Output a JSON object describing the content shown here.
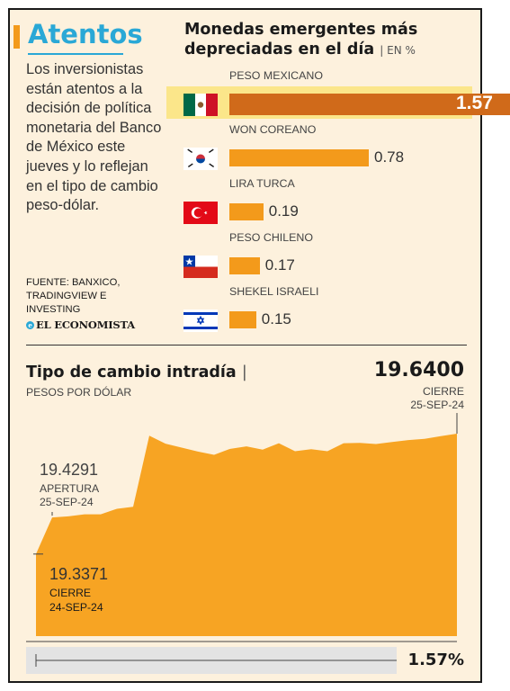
{
  "brand": "Atentos",
  "intro_text": "Los inversionistas están atentos a la decisión de política monetaria del Banco de México este jueves y lo reflejan en el tipo de cambio peso-dólar.",
  "source_text": "FUENTE: BANXICO, TRADINGVIEW E INVESTING",
  "logo_text": "EL ECONOMISTA",
  "colors": {
    "accent": "#f39a1b",
    "brand": "#2aa8d6",
    "highlight_bar": "#d06a1a",
    "background": "#fdf1dd",
    "area_fill": "#f7a423"
  },
  "chart_data": [
    {
      "type": "bar",
      "title": "Monedas emergentes más depreciadas en el día",
      "unit": "EN %",
      "categories": [
        "PESO MEXICANO",
        "WON COREANO",
        "LIRA TURCA",
        "PESO CHILENO",
        "SHEKEL ISRAELI"
      ],
      "values": [
        1.57,
        0.78,
        0.19,
        0.17,
        0.15
      ],
      "labels": [
        "1.57",
        "0.78",
        "0.19",
        "0.17",
        "0.15"
      ],
      "flags": [
        "mexico-flag-icon",
        "south-korea-flag-icon",
        "turkey-flag-icon",
        "chile-flag-icon",
        "israel-flag-icon"
      ],
      "highlight_index": 0
    },
    {
      "type": "area",
      "title": "Tipo de cambio intradía",
      "ylabel": "PESOS POR DÓLAR",
      "ylim": [
        19.28,
        19.665
      ],
      "x": [
        0,
        1,
        2,
        3,
        4,
        5,
        6,
        7,
        8,
        9,
        10,
        11,
        12,
        13,
        14,
        15,
        16,
        17,
        18,
        19,
        20,
        21,
        22,
        23,
        24,
        25,
        26
      ],
      "y": [
        19.3371,
        19.4291,
        19.432,
        19.437,
        19.437,
        19.451,
        19.456,
        19.635,
        19.615,
        19.605,
        19.595,
        19.587,
        19.602,
        19.608,
        19.6,
        19.616,
        19.596,
        19.601,
        19.596,
        19.616,
        19.617,
        19.614,
        19.619,
        19.624,
        19.627,
        19.634,
        19.64
      ],
      "annotations": {
        "apertura": {
          "value": "19.4291",
          "label": "APERTURA",
          "date": "25-SEP-24"
        },
        "cierre": {
          "value": "19.6400",
          "label": "CIERRE",
          "date": "25-SEP-24"
        },
        "cierre_anterior": {
          "value": "19.3371",
          "label": "CIERRE",
          "date": "24-SEP-24"
        }
      },
      "change": "1.57%"
    }
  ]
}
